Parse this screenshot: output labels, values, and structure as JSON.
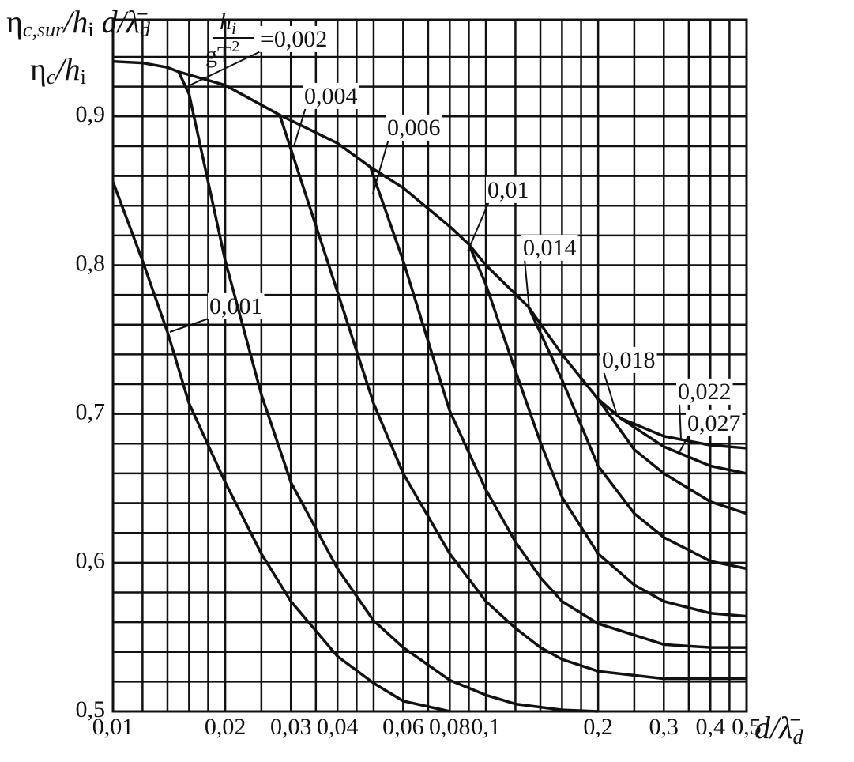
{
  "chart_data": {
    "type": "line",
    "log_x": true,
    "grid": true,
    "color": "#111111",
    "y_label_1": [
      "η",
      "c,sur",
      "/h",
      "i",
      " d/λ̄",
      "d"
    ],
    "y_label_2": [
      "η",
      "c",
      "/h",
      "i"
    ],
    "x_label": [
      "d/λ̄",
      "d"
    ],
    "param_label": [
      "h",
      "i",
      "gT",
      "2"
    ],
    "xlim": [
      0.01,
      0.5
    ],
    "ylim": [
      0.5,
      0.965
    ],
    "xticks": [
      {
        "value": 0.01,
        "label": "0,01"
      },
      {
        "value": 0.02,
        "label": "0,02"
      },
      {
        "value": 0.03,
        "label": "0,03"
      },
      {
        "value": 0.04,
        "label": "0,04"
      },
      {
        "value": 0.06,
        "label": "0,06"
      },
      {
        "value": 0.08,
        "label": "0,08"
      },
      {
        "value": 0.1,
        "label": "0,1"
      },
      {
        "value": 0.2,
        "label": "0,2"
      },
      {
        "value": 0.3,
        "label": "0,3"
      },
      {
        "value": 0.4,
        "label": "0,4"
      },
      {
        "value": 0.5,
        "label": "0,5"
      }
    ],
    "yticks": [
      {
        "value": 0.5,
        "label": "0,5"
      },
      {
        "value": 0.6,
        "label": "0,6"
      },
      {
        "value": 0.7,
        "label": "0,7"
      },
      {
        "value": 0.8,
        "label": "0,8"
      },
      {
        "value": 0.9,
        "label": "0,9"
      }
    ],
    "xgrid": [
      0.012,
      0.014,
      0.016,
      0.018,
      0.025,
      0.035,
      0.045,
      0.05,
      0.07,
      0.09,
      0.12,
      0.14,
      0.16,
      0.18,
      0.25,
      0.35,
      0.45
    ],
    "ygrid": [
      0.52,
      0.54,
      0.56,
      0.58,
      0.62,
      0.64,
      0.66,
      0.68,
      0.72,
      0.74,
      0.76,
      0.78,
      0.82,
      0.84,
      0.86,
      0.88,
      0.92,
      0.94
    ],
    "series": [
      {
        "name": "0,001",
        "color": "#111111",
        "x": [
          0.01,
          0.012,
          0.014,
          0.016,
          0.02,
          0.025,
          0.03,
          0.04,
          0.05,
          0.06,
          0.08
        ],
        "values": [
          0.856,
          0.803,
          0.755,
          0.707,
          0.654,
          0.606,
          0.574,
          0.537,
          0.519,
          0.507,
          0.5
        ]
      },
      {
        "name": "=0,002",
        "color": "#111111",
        "x": [
          0.015,
          0.016,
          0.02,
          0.025,
          0.03,
          0.04,
          0.05,
          0.06,
          0.08,
          0.1,
          0.12,
          0.16,
          0.2
        ],
        "values": [
          0.93,
          0.915,
          0.803,
          0.713,
          0.654,
          0.596,
          0.561,
          0.543,
          0.521,
          0.511,
          0.505,
          0.501,
          0.5
        ]
      },
      {
        "name": "0,004",
        "color": "#111111",
        "x": [
          0.028,
          0.04,
          0.05,
          0.06,
          0.08,
          0.1,
          0.12,
          0.14,
          0.16,
          0.2,
          0.3,
          0.5
        ],
        "values": [
          0.901,
          0.782,
          0.707,
          0.66,
          0.606,
          0.574,
          0.556,
          0.543,
          0.535,
          0.527,
          0.522,
          0.522
        ]
      },
      {
        "name": "0,006",
        "color": "#111111",
        "x": [
          0.049,
          0.06,
          0.08,
          0.1,
          0.12,
          0.14,
          0.16,
          0.2,
          0.3,
          0.4,
          0.5
        ],
        "values": [
          0.866,
          0.803,
          0.702,
          0.649,
          0.614,
          0.59,
          0.574,
          0.559,
          0.545,
          0.543,
          0.543
        ]
      },
      {
        "name": "0,01",
        "color": "#111111",
        "x": [
          0.09,
          0.1,
          0.12,
          0.14,
          0.16,
          0.2,
          0.25,
          0.3,
          0.4,
          0.5
        ],
        "values": [
          0.814,
          0.787,
          0.729,
          0.681,
          0.644,
          0.606,
          0.585,
          0.574,
          0.566,
          0.564
        ]
      },
      {
        "name": "0,014",
        "color": "#111111",
        "x": [
          0.13,
          0.16,
          0.2,
          0.25,
          0.3,
          0.4,
          0.5
        ],
        "values": [
          0.772,
          0.723,
          0.665,
          0.633,
          0.617,
          0.601,
          0.596
        ]
      },
      {
        "name": "0,018",
        "color": "#111111",
        "x": [
          0.2,
          0.25,
          0.3,
          0.4,
          0.5
        ],
        "values": [
          0.71,
          0.676,
          0.66,
          0.641,
          0.633
        ]
      },
      {
        "name": "0,022",
        "color": "#111111",
        "x": [
          0.23,
          0.25,
          0.3,
          0.4,
          0.5
        ],
        "values": [
          0.697,
          0.691,
          0.678,
          0.665,
          0.66
        ]
      },
      {
        "name": "0,027",
        "color": "#111111",
        "x": [
          0.01,
          0.012,
          0.014,
          0.015,
          0.02,
          0.028,
          0.04,
          0.049,
          0.06,
          0.08,
          0.09,
          0.1,
          0.13,
          0.16,
          0.2,
          0.23,
          0.3,
          0.4,
          0.5
        ],
        "values": [
          0.937,
          0.936,
          0.933,
          0.93,
          0.921,
          0.901,
          0.882,
          0.866,
          0.852,
          0.826,
          0.814,
          0.8,
          0.772,
          0.74,
          0.71,
          0.697,
          0.685,
          0.679,
          0.677
        ]
      }
    ]
  }
}
